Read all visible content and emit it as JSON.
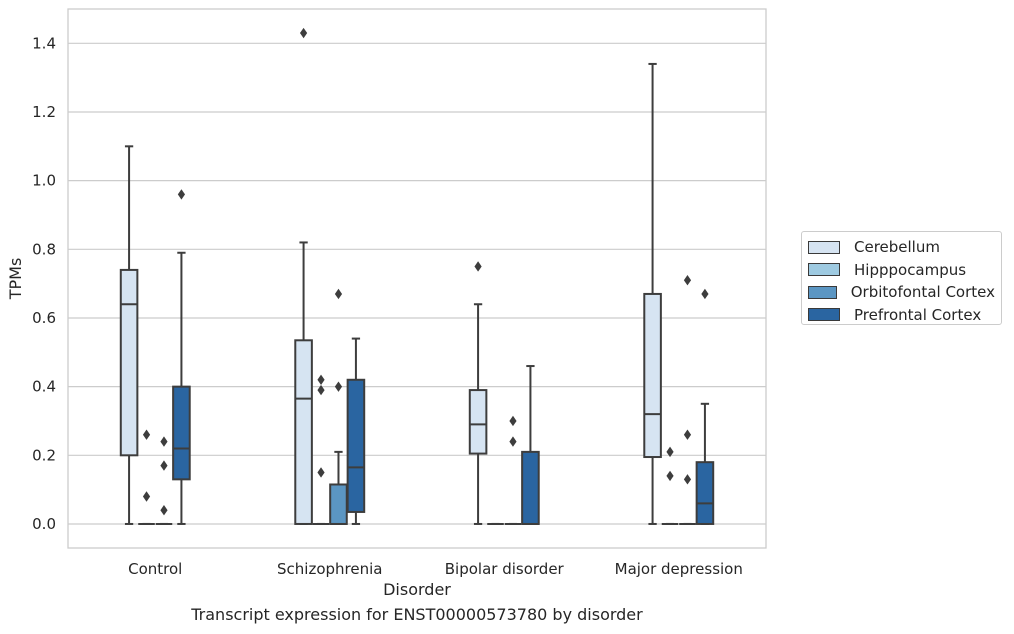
{
  "chart_data": {
    "type": "box",
    "xlabel": "Disorder",
    "ylabel": "TPMs",
    "caption": "Transcript expression for ENST00000573780 by disorder",
    "ylim": [
      -0.07,
      1.5
    ],
    "yticks": [
      0.0,
      0.2,
      0.4,
      0.6,
      0.8,
      1.0,
      1.2,
      1.4
    ],
    "ytick_labels": [
      "0.0",
      "0.2",
      "0.4",
      "0.6",
      "0.8",
      "1.0",
      "1.2",
      "1.4"
    ],
    "categories": [
      "Control",
      "Schizophrenia",
      "Bipolar disorder",
      "Major depression"
    ],
    "grid": "horizontal",
    "legend_position": "right",
    "series": [
      {
        "name": "Cerebellum",
        "color": "#d6e4f2",
        "boxes": [
          {
            "whislo": 0.0,
            "q1": 0.2,
            "med": 0.64,
            "q3": 0.74,
            "whishi": 1.1,
            "fliers": []
          },
          {
            "whislo": 0.0,
            "q1": 0.0,
            "med": 0.365,
            "q3": 0.535,
            "whishi": 0.82,
            "fliers": [
              1.43
            ]
          },
          {
            "whislo": 0.0,
            "q1": 0.205,
            "med": 0.29,
            "q3": 0.39,
            "whishi": 0.64,
            "fliers": [
              0.75
            ]
          },
          {
            "whislo": 0.0,
            "q1": 0.195,
            "med": 0.32,
            "q3": 0.67,
            "whishi": 1.34,
            "fliers": []
          }
        ]
      },
      {
        "name": "Hipppocampus",
        "color": "#9ecae1",
        "boxes": [
          {
            "whislo": 0.0,
            "q1": 0.0,
            "med": 0.0,
            "q3": 0.0,
            "whishi": 0.0,
            "fliers": [
              0.26,
              0.08
            ]
          },
          {
            "whislo": 0.0,
            "q1": 0.0,
            "med": 0.0,
            "q3": 0.0,
            "whishi": 0.0,
            "fliers": [
              0.42,
              0.39,
              0.15
            ]
          },
          {
            "whislo": 0.0,
            "q1": 0.0,
            "med": 0.0,
            "q3": 0.0,
            "whishi": 0.0,
            "fliers": []
          },
          {
            "whislo": 0.0,
            "q1": 0.0,
            "med": 0.0,
            "q3": 0.0,
            "whishi": 0.0,
            "fliers": [
              0.21,
              0.14
            ]
          }
        ]
      },
      {
        "name": "Orbitofontal Cortex",
        "color": "#5b96c3",
        "boxes": [
          {
            "whislo": 0.0,
            "q1": 0.0,
            "med": 0.0,
            "q3": 0.0,
            "whishi": 0.0,
            "fliers": [
              0.24,
              0.17,
              0.04
            ]
          },
          {
            "whislo": 0.0,
            "q1": 0.0,
            "med": 0.0,
            "q3": 0.115,
            "whishi": 0.21,
            "fliers": [
              0.67,
              0.4
            ]
          },
          {
            "whislo": 0.0,
            "q1": 0.0,
            "med": 0.0,
            "q3": 0.0,
            "whishi": 0.0,
            "fliers": [
              0.3,
              0.24
            ]
          },
          {
            "whislo": 0.0,
            "q1": 0.0,
            "med": 0.0,
            "q3": 0.0,
            "whishi": 0.0,
            "fliers": [
              0.71,
              0.26,
              0.13
            ]
          }
        ]
      },
      {
        "name": "Prefrontal Cortex",
        "color": "#2a65a1",
        "boxes": [
          {
            "whislo": 0.0,
            "q1": 0.13,
            "med": 0.22,
            "q3": 0.4,
            "whishi": 0.79,
            "fliers": [
              0.96
            ]
          },
          {
            "whislo": 0.0,
            "q1": 0.035,
            "med": 0.165,
            "q3": 0.42,
            "whishi": 0.54,
            "fliers": []
          },
          {
            "whislo": 0.0,
            "q1": 0.0,
            "med": 0.0,
            "q3": 0.21,
            "whishi": 0.46,
            "fliers": []
          },
          {
            "whislo": 0.0,
            "q1": 0.0,
            "med": 0.06,
            "q3": 0.18,
            "whishi": 0.35,
            "fliers": [
              0.67
            ]
          }
        ]
      }
    ]
  }
}
